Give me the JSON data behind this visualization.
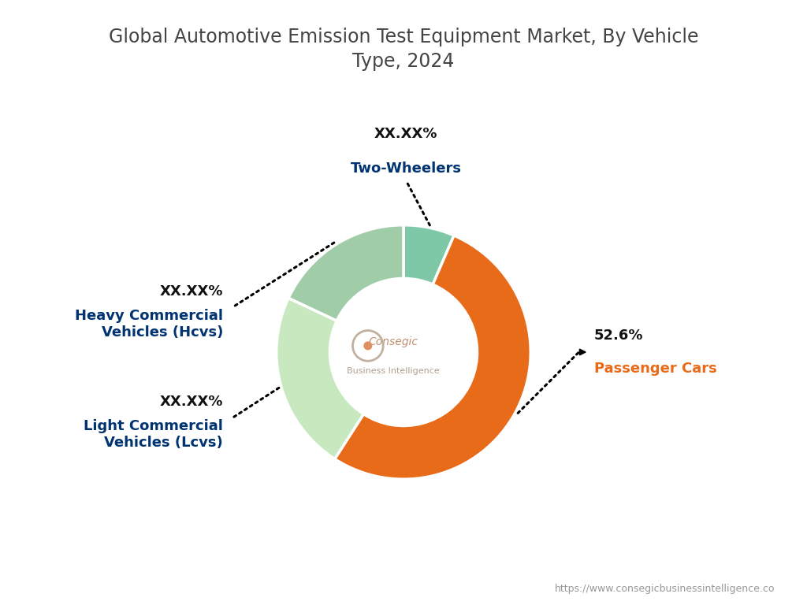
{
  "title": "Global Automotive Emission Test Equipment Market, By Vehicle\nType, 2024",
  "segments": [
    {
      "label": "Two-Wheelers",
      "value": 6.5,
      "percentage_display": "XX.XX%",
      "color": "#7EC8A8"
    },
    {
      "label": "Passenger Cars",
      "value": 52.6,
      "percentage_display": "52.6%",
      "color": "#E86B1A"
    },
    {
      "label": "Light Commercial\nVehicles (Lcvs)",
      "value": 22.9,
      "percentage_display": "XX.XX%",
      "color": "#C8E8C0"
    },
    {
      "label": "Heavy Commercial\nVehicles (Hcvs)",
      "value": 18.0,
      "percentage_display": "XX.XX%",
      "color": "#A0CCA8"
    }
  ],
  "center_text_line1": "Consegic",
  "center_text_line2": "Business Intelligence",
  "footer_text": "https://www.consegicbusinessintelligence.co",
  "background_color": "#FFFFFF",
  "title_color": "#444444",
  "label_pct_color": "#111111",
  "label_name_color_passenger": "#E86B1A",
  "label_name_color_others": "#003370",
  "wedge_edge_color": "#FFFFFF",
  "donut_width": 0.42,
  "startangle": 90
}
